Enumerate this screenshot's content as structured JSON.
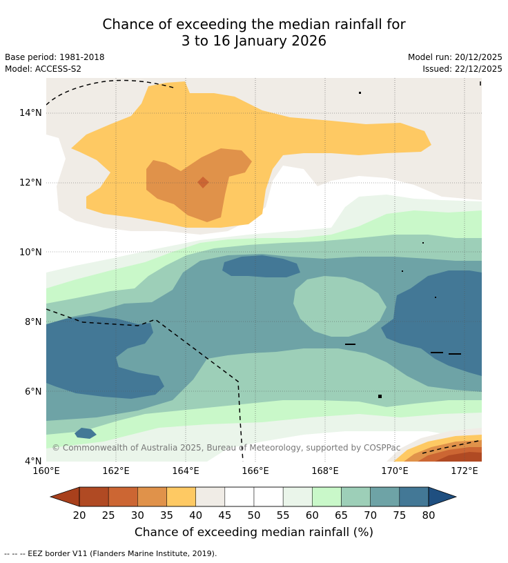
{
  "title": {
    "line1": "Chance of exceeding the median rainfall for",
    "line2": "3 to 16 January 2026"
  },
  "meta": {
    "base_period": "Base period: 1981-2018",
    "model": "Model: ACCESS-S2",
    "model_run": "Model run: 20/12/2025",
    "issued": "Issued: 22/12/2025"
  },
  "map": {
    "x_ticks": [
      "160°E",
      "162°E",
      "164°E",
      "166°E",
      "168°E",
      "170°E",
      "172°E"
    ],
    "y_ticks": [
      "14°N",
      "12°N",
      "10°N",
      "8°N",
      "6°N",
      "4°N"
    ],
    "lon_range": [
      160,
      172.5
    ],
    "lat_range": [
      4,
      15.1
    ],
    "copyright": "© Commonwealth of Australia 2025, Bureau of Meteorology, supported by COSPPac"
  },
  "colorbar": {
    "ticks": [
      "20",
      "25",
      "30",
      "35",
      "40",
      "45",
      "50",
      "55",
      "60",
      "65",
      "70",
      "75",
      "80"
    ],
    "colors": [
      "#b04a23",
      "#cc6633",
      "#e0924a",
      "#fec963",
      "#f0ece6",
      "#ffffff",
      "#ffffff",
      "#eaf5ea",
      "#c9f8c9",
      "#9dcfb8",
      "#6ea3a6",
      "#437896"
    ],
    "under_color": "#a8401c",
    "over_color": "#1f4f80",
    "label": "Chance of exceeding median rainfall (%)"
  },
  "footer": {
    "legend": "--  --  -- EEZ border V11 (Flanders Marine Institute, 2019)."
  }
}
